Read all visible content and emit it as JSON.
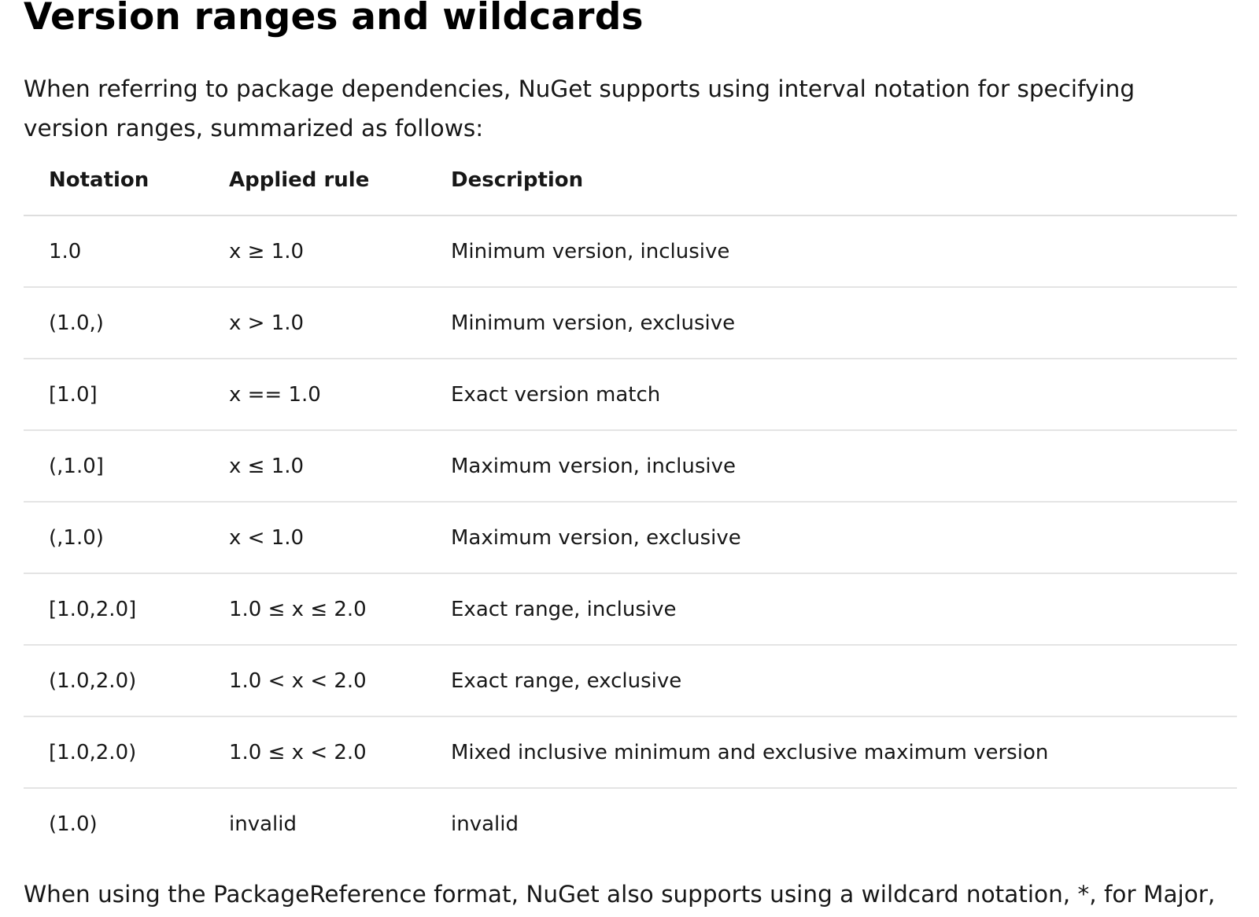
{
  "heading": "Version ranges and wildcards",
  "intro": "When referring to package dependencies, NuGet supports using interval notation for specifying version ranges, summarized as follows:",
  "table": {
    "headers": [
      "Notation",
      "Applied rule",
      "Description"
    ],
    "rows": [
      {
        "notation": "1.0",
        "rule": "x ≥ 1.0",
        "description": "Minimum version, inclusive"
      },
      {
        "notation": "(1.0,)",
        "rule": "x > 1.0",
        "description": "Minimum version, exclusive"
      },
      {
        "notation": "[1.0]",
        "rule": "x == 1.0",
        "description": "Exact version match"
      },
      {
        "notation": "(,1.0]",
        "rule": "x ≤ 1.0",
        "description": "Maximum version, inclusive"
      },
      {
        "notation": "(,1.0)",
        "rule": "x < 1.0",
        "description": "Maximum version, exclusive"
      },
      {
        "notation": "[1.0,2.0]",
        "rule": "1.0 ≤ x ≤ 2.0",
        "description": "Exact range, inclusive"
      },
      {
        "notation": "(1.0,2.0)",
        "rule": "1.0 < x < 2.0",
        "description": "Exact range, exclusive"
      },
      {
        "notation": "[1.0,2.0)",
        "rule": "1.0 ≤ x < 2.0",
        "description": "Mixed inclusive minimum and exclusive maximum version"
      },
      {
        "notation": "(1.0)",
        "rule": "invalid",
        "description": "invalid"
      }
    ]
  },
  "outro": "When using the PackageReference format, NuGet also supports using a wildcard notation, *, for Major,"
}
